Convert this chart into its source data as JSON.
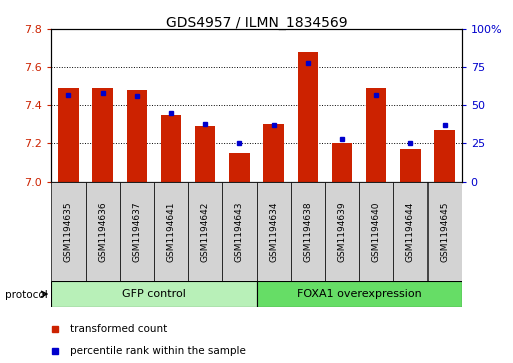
{
  "title": "GDS4957 / ILMN_1834569",
  "samples": [
    "GSM1194635",
    "GSM1194636",
    "GSM1194637",
    "GSM1194641",
    "GSM1194642",
    "GSM1194643",
    "GSM1194634",
    "GSM1194638",
    "GSM1194639",
    "GSM1194640",
    "GSM1194644",
    "GSM1194645"
  ],
  "transformed_count": [
    7.49,
    7.49,
    7.48,
    7.35,
    7.29,
    7.15,
    7.3,
    7.68,
    7.2,
    7.49,
    7.17,
    7.27
  ],
  "percentile_rank": [
    57,
    58,
    56,
    45,
    38,
    25,
    37,
    78,
    28,
    57,
    25,
    37
  ],
  "ylim_left": [
    7.0,
    7.8
  ],
  "ylim_right": [
    0,
    100
  ],
  "yticks_left": [
    7.0,
    7.2,
    7.4,
    7.6,
    7.8
  ],
  "yticks_right": [
    0,
    25,
    50,
    75,
    100
  ],
  "ytick_labels_right": [
    "0",
    "25",
    "50",
    "75",
    "100%"
  ],
  "bar_color_red": "#cc2200",
  "bar_color_blue": "#0000cc",
  "bar_width": 0.6,
  "bg_color": "#ffffff",
  "plot_bg": "#ffffff",
  "left_tick_color": "#cc2200",
  "right_tick_color": "#0000cc",
  "label_box_color": "#d3d3d3",
  "gfp_group_color": "#b8f0b8",
  "foxa_group_color": "#66dd66",
  "legend": [
    {
      "label": "transformed count",
      "color": "#cc2200"
    },
    {
      "label": "percentile rank within the sample",
      "color": "#0000cc"
    }
  ]
}
